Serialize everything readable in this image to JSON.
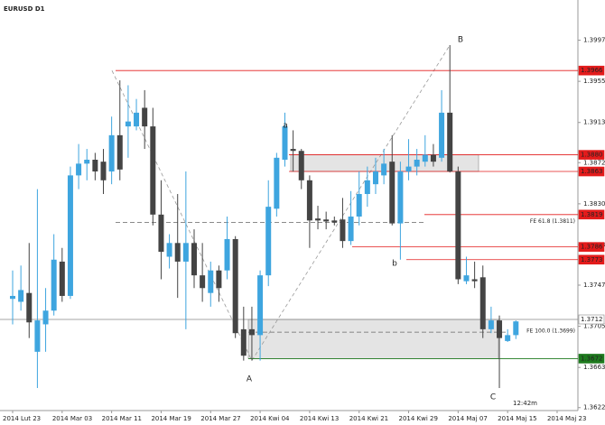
{
  "chart_data": {
    "type": "candlestick",
    "title": "EURUSD D1",
    "categories": [
      "2014 Lut 23",
      null,
      null,
      null,
      null,
      null,
      "2014 Mar 03",
      null,
      null,
      null,
      null,
      null,
      "2014 Mar 11",
      null,
      null,
      null,
      null,
      null,
      "2014 Mar 19",
      null,
      null,
      null,
      null,
      null,
      "2014 Mar 27",
      null,
      null,
      null,
      null,
      null,
      "2014 Kwi 04",
      null,
      null,
      null,
      null,
      null,
      "2014 Kwi 13",
      null,
      null,
      null,
      null,
      null,
      "2014 Kwi 21",
      null,
      null,
      null,
      null,
      null,
      "2014 Kwi 29",
      null,
      null,
      null,
      null,
      null,
      "2014 Maj 07",
      null,
      null,
      null,
      null,
      null,
      "2014 Maj 15",
      null,
      null,
      null,
      null,
      null,
      "2014 Maj 23"
    ],
    "open": [
      1.3733,
      1.373,
      1.3739,
      1.3679,
      1.3707,
      1.3721,
      1.3771,
      1.3736,
      1.3859,
      1.3871,
      1.3875,
      1.3873,
      1.3863,
      1.39,
      1.3909,
      1.3909,
      1.3928,
      1.3909,
      1.3819,
      1.3776,
      1.379,
      1.3771,
      1.379,
      1.3757,
      1.3739,
      1.3762,
      1.3762,
      1.3794,
      1.3702,
      1.3702,
      1.3696,
      1.3757,
      1.3825,
      1.3875,
      1.3886,
      1.3884,
      1.3854,
      1.3815,
      1.3814,
      1.3813,
      1.3814,
      1.3792,
      1.3817,
      1.384,
      1.385,
      1.3859,
      1.3873,
      1.381,
      1.3863,
      1.3868,
      1.3873,
      1.388,
      1.3877,
      1.3923,
      1.3863,
      1.3751,
      1.3753,
      1.3755,
      1.3702,
      1.3711,
      1.369,
      1.3696,
      null,
      null,
      null,
      null,
      null
    ],
    "high": [
      1.3762,
      1.3767,
      1.379,
      1.3845,
      1.3744,
      1.3799,
      1.3785,
      1.3868,
      1.3891,
      1.3886,
      1.3882,
      1.3886,
      1.3919,
      1.3956,
      1.3951,
      1.3937,
      1.3946,
      1.3928,
      1.3854,
      1.3799,
      1.384,
      1.3863,
      1.3804,
      1.379,
      1.3771,
      1.3767,
      1.3817,
      1.3797,
      1.3725,
      1.3725,
      1.3762,
      1.3854,
      1.3882,
      1.3923,
      1.3905,
      1.3886,
      1.3859,
      1.3828,
      1.3822,
      1.3817,
      1.3836,
      1.3843,
      1.3863,
      1.3868,
      1.3877,
      1.3886,
      1.39,
      1.3873,
      1.3896,
      1.3886,
      1.39,
      1.3891,
      1.3946,
      1.3992,
      1.3868,
      1.3776,
      1.3771,
      1.3767,
      1.3725,
      1.3716,
      1.3702,
      1.3711,
      null,
      null,
      null,
      null,
      null
    ],
    "low": [
      1.3707,
      1.3721,
      1.3693,
      1.3642,
      1.3679,
      1.3716,
      1.373,
      1.3733,
      1.3845,
      1.3854,
      1.3854,
      1.384,
      1.385,
      1.3854,
      1.3877,
      1.3905,
      1.3886,
      1.3808,
      1.3753,
      1.3764,
      1.3734,
      1.3702,
      1.3744,
      1.373,
      1.3725,
      1.373,
      1.3753,
      1.3693,
      1.367,
      1.367,
      1.367,
      1.3746,
      1.3817,
      1.3868,
      1.3863,
      1.3845,
      1.3785,
      1.3804,
      1.3804,
      1.3808,
      1.3785,
      1.3788,
      1.3808,
      1.3827,
      1.384,
      1.385,
      1.3808,
      1.3773,
      1.3854,
      1.3859,
      1.3868,
      1.3868,
      1.3873,
      1.3862,
      1.3748,
      1.3748,
      1.3744,
      1.3693,
      1.3698,
      1.3642,
      1.3689,
      1.3692,
      null,
      null,
      null,
      null,
      null
    ],
    "close": [
      1.3736,
      1.3742,
      1.3709,
      1.3711,
      1.3721,
      1.3773,
      1.3736,
      1.3859,
      1.3871,
      1.3875,
      1.3863,
      1.3854,
      1.39,
      1.3865,
      1.3914,
      1.3923,
      1.3909,
      1.3819,
      1.3781,
      1.379,
      1.3771,
      1.379,
      1.3757,
      1.3744,
      1.3762,
      1.3744,
      1.3794,
      1.3698,
      1.3675,
      1.3696,
      1.3757,
      1.3827,
      1.3877,
      1.3909,
      1.3884,
      1.3854,
      1.3813,
      1.3813,
      1.3812,
      1.3811,
      1.3792,
      1.3817,
      1.384,
      1.3854,
      1.3863,
      1.3871,
      1.381,
      1.3863,
      1.3868,
      1.3875,
      1.388,
      1.3873,
      1.3923,
      1.3863,
      1.3753,
      1.3757,
      1.3751,
      1.3702,
      1.3711,
      1.3693,
      1.3696,
      1.371,
      null,
      null,
      null,
      null,
      null
    ],
    "up_color": "#3ea5df",
    "down_color": "#444444",
    "ylim": [
      1.3619,
      1.4038
    ],
    "yticks": [
      1.3997,
      1.3955,
      1.3913,
      1.3872,
      {
        "value": 1.383,
        "label": "1.3830"
      },
      1.3788,
      1.3747,
      1.3705,
      1.3663,
      1.3622
    ],
    "levels": [
      {
        "value": 1.3966,
        "color": "#e31b1b"
      },
      {
        "value": 1.388,
        "label": "1.3880",
        "color": "#e31b1b"
      },
      {
        "value": 1.3863,
        "color": "#e31b1b"
      },
      {
        "value": 1.3819,
        "color": "#e31b1b"
      },
      {
        "value": 1.3786,
        "color": "#e31b1b"
      },
      {
        "value": 1.3773,
        "color": "#e31b1b"
      },
      {
        "value": 1.3712,
        "color": "#888888"
      },
      {
        "value": 1.3672,
        "color": "#1e7a1e"
      }
    ],
    "fe_levels": [
      {
        "value": 1.3811,
        "label": "FE 61.8 (1.3811)"
      },
      {
        "value": 1.3699,
        "label": "FE 100.0 (1.3699)"
      }
    ],
    "annotations": [
      {
        "text": "a",
        "color": "#e31b1b"
      },
      {
        "text": "b",
        "color": "#e31b1b"
      },
      {
        "text": "A",
        "color": "#e31b1b"
      },
      {
        "text": "B",
        "color": "#e31b1b"
      },
      {
        "text": "C",
        "color": "#e31b1b"
      }
    ],
    "timer": {
      "text": "12:42m",
      "color": "#f0a020"
    }
  }
}
